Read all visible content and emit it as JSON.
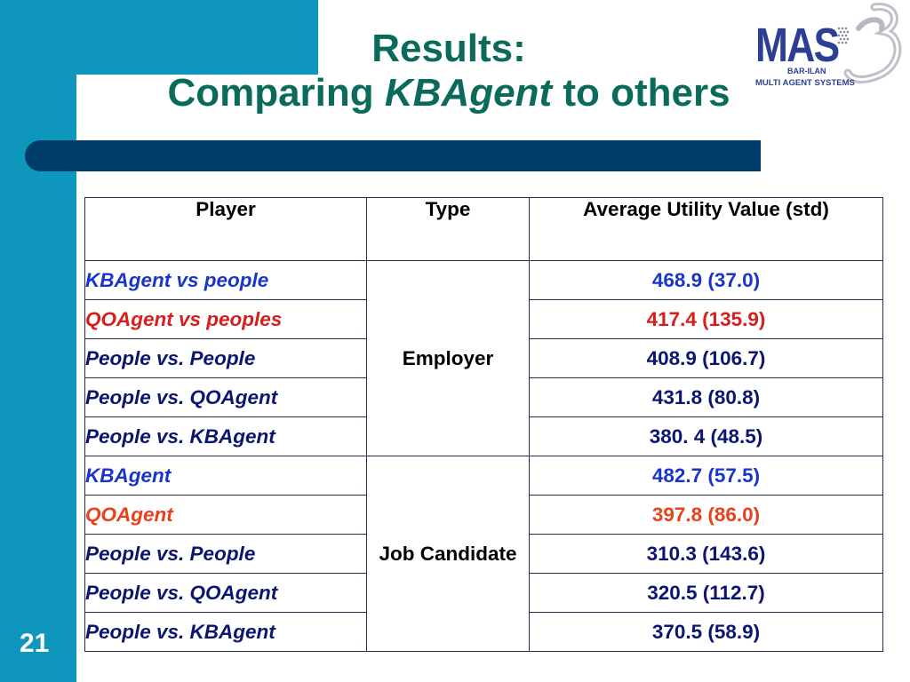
{
  "title": {
    "line1": "Results:",
    "line2_prefix": "Comparing ",
    "line2_italic": "KBAgent",
    "line2_suffix": " to others"
  },
  "logo": {
    "text": "MAS",
    "sub1": "BAR-ILAN",
    "sub2": "MULTI AGENT SYSTEMS"
  },
  "slide_number": "21",
  "table": {
    "headers": {
      "player": "Player",
      "type": "Type",
      "avg": "Average Utility Value (std)"
    },
    "groups": [
      {
        "type": "Employer",
        "rows": [
          {
            "player": "KBAgent vs people",
            "value": "468.9 (37.0)",
            "color": "#1a36c8"
          },
          {
            "player": "QOAgent vs peoples",
            "value": "417.4 (135.9)",
            "color": "#d81d1d"
          },
          {
            "player": "People vs. People",
            "value": "408.9 (106.7)",
            "color": "#0a1670"
          },
          {
            "player": "People vs. QOAgent",
            "value": "431.8 (80.8)",
            "color": "#0a1670"
          },
          {
            "player": "People vs. KBAgent",
            "value": "380. 4 (48.5)",
            "color": "#0a1670"
          }
        ]
      },
      {
        "type": "Job Candidate",
        "rows": [
          {
            "player": "KBAgent",
            "value": "482.7 (57.5)",
            "color": "#1a36c8"
          },
          {
            "player": "QOAgent",
            "value": "397.8 (86.0)",
            "color": "#e8411c"
          },
          {
            "player": "People vs. People",
            "value": "310.3 (143.6)",
            "color": "#0a1670"
          },
          {
            "player": "People vs. QOAgent",
            "value": "320.5 (112.7)",
            "color": "#0a1670"
          },
          {
            "player": "People vs. KBAgent",
            "value": "370.5 (58.9)",
            "color": "#0a1670"
          }
        ]
      }
    ]
  }
}
